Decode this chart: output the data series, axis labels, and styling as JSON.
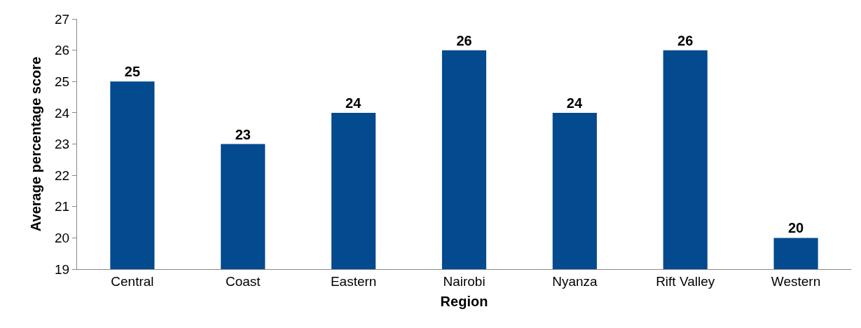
{
  "chart_data": {
    "type": "bar",
    "xlabel": "Region",
    "ylabel": "Average percentage score",
    "categories": [
      "Central",
      "Coast",
      "Eastern",
      "Nairobi",
      "Nyanza",
      "Rift Valley",
      "Western"
    ],
    "values": [
      25,
      23,
      24,
      26,
      24,
      26,
      20
    ],
    "color": "#034a8f",
    "ylim": [
      19,
      27
    ],
    "yticks": [
      19,
      20,
      21,
      22,
      23,
      24,
      25,
      26,
      27
    ],
    "grid": false,
    "data_labels": true
  }
}
